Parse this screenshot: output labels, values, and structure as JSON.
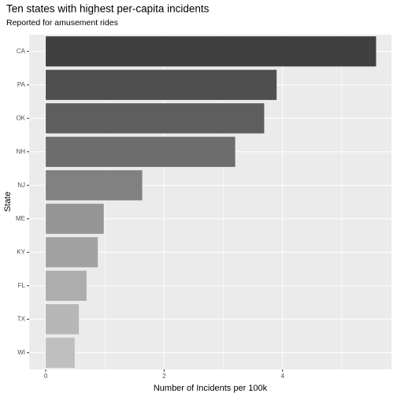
{
  "chart_data": {
    "type": "barh",
    "title": "Ten states with highest per-capita incidents",
    "subtitle": "Reported for amusement rides",
    "x_label": "Number of Incidents per 100k",
    "y_label": "State",
    "categories": [
      "CA",
      "PA",
      "OK",
      "NH",
      "NJ",
      "ME",
      "KY",
      "FL",
      "TX",
      "WI"
    ],
    "values": [
      5.58,
      3.9,
      3.69,
      3.2,
      1.63,
      0.98,
      0.88,
      0.69,
      0.56,
      0.49
    ],
    "colors": [
      "#404040",
      "#4f4f4f",
      "#5e5e5e",
      "#6d6d6d",
      "#818181",
      "#959595",
      "#a2a2a2",
      "#adadad",
      "#b7b7b7",
      "#bfbfbf"
    ],
    "xlim": [
      -0.28,
      5.84
    ],
    "xticks": [
      0,
      2,
      4
    ],
    "minor_xticks": [
      1,
      3,
      5
    ],
    "grid": true
  }
}
